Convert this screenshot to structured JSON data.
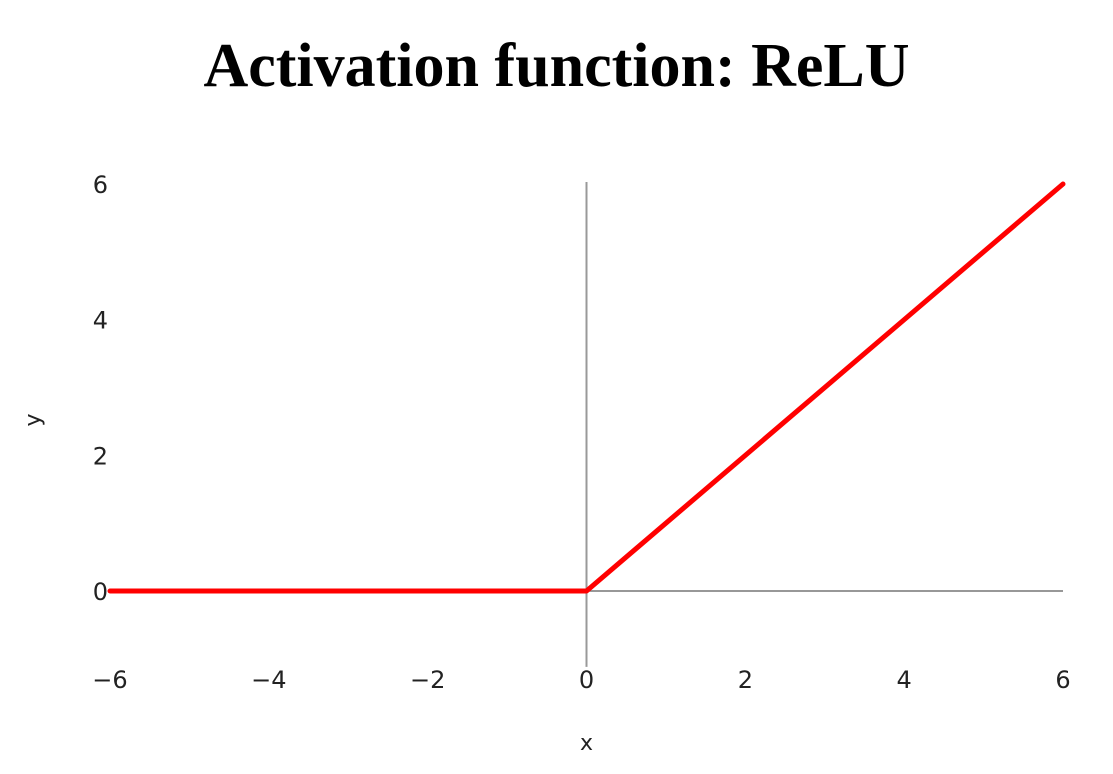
{
  "chart_data": {
    "type": "line",
    "title": "Activation function: ReLU",
    "xlabel": "x",
    "ylabel": "y",
    "xlim": [
      -6,
      6
    ],
    "ylim": [
      -1,
      6
    ],
    "x_ticks": [
      -6,
      -4,
      -2,
      0,
      2,
      4,
      6
    ],
    "y_ticks": [
      0,
      2,
      4,
      6
    ],
    "x_tick_labels": [
      "−6",
      "−4",
      "−2",
      "0",
      "2",
      "4",
      "6"
    ],
    "y_tick_labels": [
      "0",
      "2",
      "4",
      "6"
    ],
    "grid": false,
    "series": [
      {
        "x": [
          -6,
          0,
          6
        ],
        "y": [
          0,
          0,
          6
        ],
        "color": "#ff0000"
      }
    ],
    "axis_color": "#999999"
  }
}
